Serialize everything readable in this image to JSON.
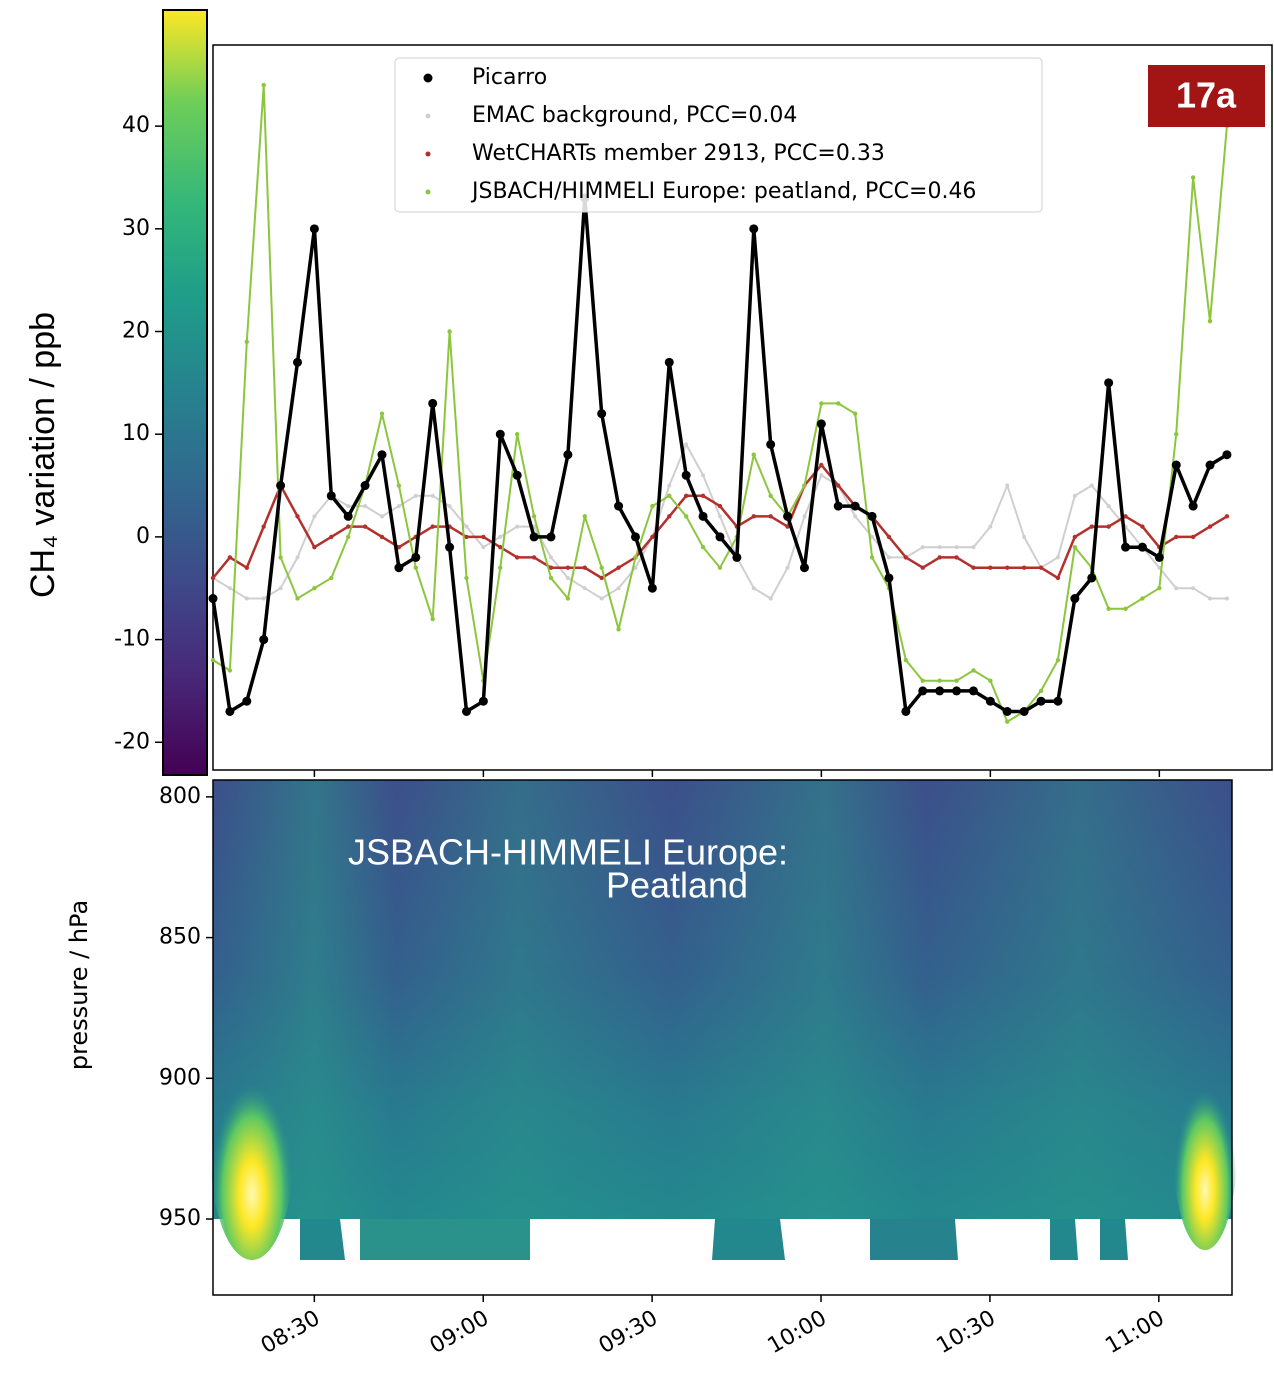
{
  "badge": "17a",
  "chart_data": [
    {
      "type": "line",
      "ylabel": "CH₄ variation / ppb",
      "x": [
        "08:12",
        "08:15",
        "08:18",
        "08:21",
        "08:24",
        "08:27",
        "08:30",
        "08:33",
        "08:36",
        "08:39",
        "08:42",
        "08:45",
        "08:48",
        "08:51",
        "08:54",
        "08:57",
        "09:00",
        "09:03",
        "09:06",
        "09:09",
        "09:12",
        "09:15",
        "09:18",
        "09:21",
        "09:24",
        "09:27",
        "09:30",
        "09:33",
        "09:36",
        "09:39",
        "09:42",
        "09:45",
        "09:48",
        "09:51",
        "09:54",
        "09:57",
        "10:00",
        "10:03",
        "10:06",
        "10:09",
        "10:12",
        "10:15",
        "10:18",
        "10:21",
        "10:24",
        "10:27",
        "10:30",
        "10:33",
        "10:36",
        "10:39",
        "10:42",
        "10:45",
        "10:48",
        "10:51",
        "10:54",
        "10:57",
        "11:00",
        "11:03",
        "11:06",
        "11:09",
        "11:12"
      ],
      "xlim": [
        "08:12",
        "11:20"
      ],
      "ylim": [
        -22.7,
        47.9
      ],
      "yticks": [
        -20,
        -10,
        0,
        10,
        20,
        30,
        40
      ],
      "legend": "upper center",
      "series": [
        {
          "name": "EMAC background, PCC=0.04",
          "color": "#cfcfcf",
          "values": [
            -4,
            -5,
            -6,
            -6,
            -5,
            -2,
            2,
            4,
            3,
            3,
            2,
            3,
            4,
            4,
            3,
            1,
            -1,
            0,
            1,
            1,
            -2,
            -4,
            -5,
            -6,
            -5,
            -3,
            0,
            5,
            9,
            6,
            2,
            -2,
            -5,
            -6,
            -3,
            2,
            6,
            5,
            2,
            0,
            -2,
            -2,
            -1,
            -1,
            -1,
            -1,
            1,
            5,
            0,
            -3,
            -2,
            4,
            5,
            3,
            1,
            -1,
            -3,
            -5,
            -5,
            -6,
            -6
          ]
        },
        {
          "name": "WetCHARTs member 2913, PCC=0.33",
          "color": "#b3302c",
          "values": [
            -4,
            -2,
            -3,
            1,
            5,
            2,
            -1,
            0,
            1,
            1,
            0,
            -1,
            0,
            1,
            1,
            0,
            0,
            -1,
            -2,
            -2,
            -3,
            -3,
            -3,
            -4,
            -3,
            -2,
            0,
            2,
            4,
            4,
            3,
            1,
            2,
            2,
            1,
            5,
            7,
            5,
            3,
            2,
            0,
            -2,
            -3,
            -2,
            -2,
            -3,
            -3,
            -3,
            -3,
            -3,
            -4,
            0,
            1,
            1,
            2,
            1,
            -1,
            0,
            0,
            1,
            2
          ]
        },
        {
          "name": "JSBACH/HIMMELI Europe: peatland, PCC=0.46",
          "color": "#8cc63e",
          "values": [
            -12,
            -13,
            19,
            44,
            -2,
            -6,
            -5,
            -4,
            0,
            5,
            12,
            5,
            -3,
            -8,
            20,
            -4,
            -14,
            -3,
            10,
            2,
            -4,
            -6,
            2,
            -3,
            -9,
            -2,
            3,
            4,
            2,
            -1,
            -3,
            0,
            8,
            4,
            2,
            5,
            13,
            13,
            12,
            -2,
            -5,
            -12,
            -14,
            -14,
            -14,
            -13,
            -14,
            -18,
            -17,
            -15,
            -12,
            -1,
            -3,
            -7,
            -7,
            -6,
            -5,
            10,
            35,
            21,
            40
          ]
        },
        {
          "name": "Picarro",
          "color": "#000000",
          "values": [
            -6,
            -17,
            -16,
            -10,
            5,
            17,
            30,
            4,
            2,
            5,
            8,
            -3,
            -2,
            13,
            -1,
            -17,
            -16,
            10,
            6,
            0,
            0,
            8,
            33,
            12,
            3,
            0,
            -5,
            17,
            6,
            2,
            0,
            -2,
            30,
            9,
            2,
            -3,
            11,
            3,
            3,
            2,
            -4,
            -17,
            -15,
            -15,
            -15,
            -15,
            -16,
            -17,
            -17,
            -16,
            -16,
            -6,
            -4,
            15,
            -1,
            -1,
            -2,
            7,
            3,
            7,
            8
          ]
        }
      ]
    },
    {
      "type": "heatmap",
      "ylabel": "pressure / hPa",
      "annotation": [
        "JSBACH-HIMMELI Europe:",
        "Peatland"
      ],
      "xlim": [
        "08:12",
        "11:13"
      ],
      "xticks": [
        "08:30",
        "09:00",
        "09:30",
        "10:00",
        "10:30",
        "11:00"
      ],
      "ylim": [
        977,
        794
      ],
      "yticks": [
        800,
        850,
        900,
        950
      ]
    }
  ]
}
